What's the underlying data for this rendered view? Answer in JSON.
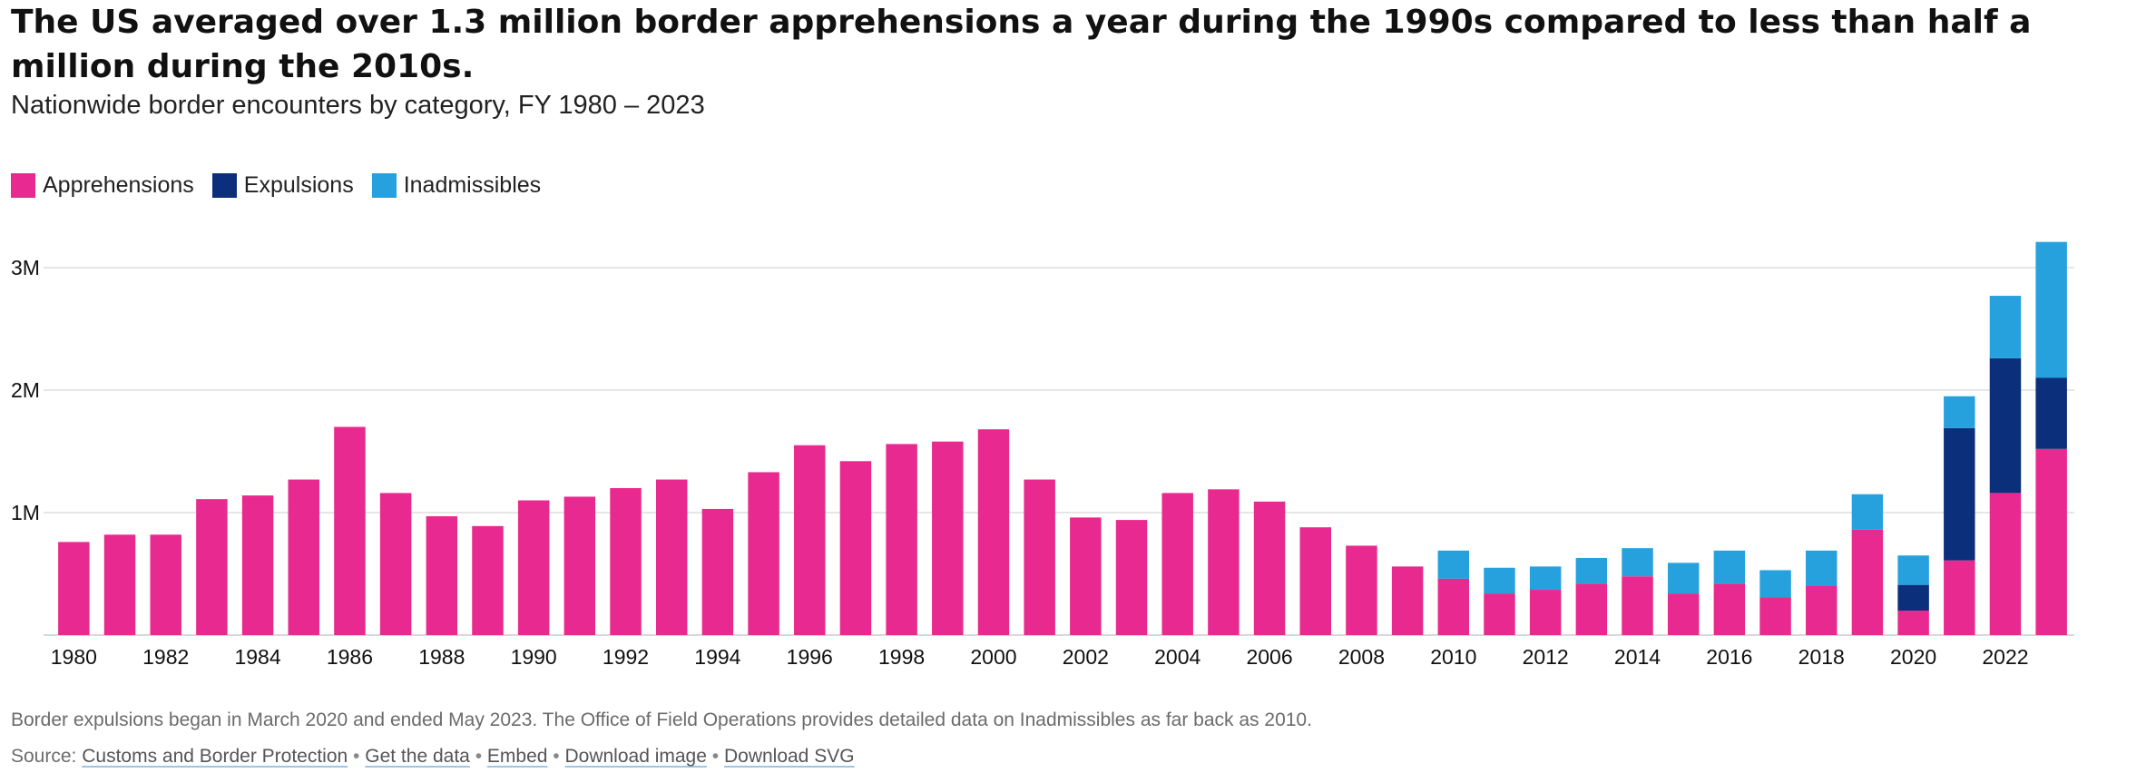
{
  "title": "The US averaged over 1.3 million border apprehensions a year during the 1990s compared to less than half a million during the 2010s.",
  "subtitle": "Nationwide border encounters by category, FY 1980 – 2023",
  "colors": {
    "apprehensions": "#e8298f",
    "expulsions": "#0b2f7a",
    "inadmissibles": "#27a1de",
    "grid": "#dddddd",
    "axis_text": "#111111"
  },
  "footnote": "Border expulsions began in March 2020 and ended May 2023. The Office of Field Operations provides detailed data on Inadmissibles as far back as 2010.",
  "source": {
    "prefix": "Source:",
    "links": [
      "Customs and Border Protection",
      "Get the data",
      "Embed",
      "Download image",
      "Download SVG"
    ],
    "separator": "•"
  },
  "chart_data": {
    "type": "bar",
    "stacked": true,
    "legend_position": "top-left",
    "grid": true,
    "ylim": [
      0,
      3200000
    ],
    "yticks": [
      1000000,
      2000000,
      3000000
    ],
    "ytick_labels": [
      "1M",
      "2M",
      "3M"
    ],
    "xtick_labels": [
      "1980",
      "1982",
      "1984",
      "1986",
      "1988",
      "1990",
      "1992",
      "1994",
      "1996",
      "1998",
      "2000",
      "2002",
      "2004",
      "2006",
      "2008",
      "2010",
      "2012",
      "2014",
      "2016",
      "2018",
      "2020",
      "2022"
    ],
    "categories": [
      "1980",
      "1981",
      "1982",
      "1983",
      "1984",
      "1985",
      "1986",
      "1987",
      "1988",
      "1989",
      "1990",
      "1991",
      "1992",
      "1993",
      "1994",
      "1995",
      "1996",
      "1997",
      "1998",
      "1999",
      "2000",
      "2001",
      "2002",
      "2003",
      "2004",
      "2005",
      "2006",
      "2007",
      "2008",
      "2009",
      "2010",
      "2011",
      "2012",
      "2013",
      "2014",
      "2015",
      "2016",
      "2017",
      "2018",
      "2019",
      "2020",
      "2021",
      "2022",
      "2023"
    ],
    "series": [
      {
        "name": "Apprehensions",
        "key": "apprehensions",
        "values": [
          760000,
          820000,
          820000,
          1110000,
          1140000,
          1270000,
          1700000,
          1160000,
          970000,
          890000,
          1100000,
          1130000,
          1200000,
          1270000,
          1030000,
          1330000,
          1550000,
          1420000,
          1560000,
          1580000,
          1680000,
          1270000,
          960000,
          940000,
          1160000,
          1190000,
          1090000,
          880000,
          730000,
          560000,
          460000,
          340000,
          370000,
          420000,
          480000,
          340000,
          420000,
          310000,
          400000,
          860000,
          200000,
          610000,
          1160000,
          1520000
        ]
      },
      {
        "name": "Expulsions",
        "key": "expulsions",
        "values": [
          0,
          0,
          0,
          0,
          0,
          0,
          0,
          0,
          0,
          0,
          0,
          0,
          0,
          0,
          0,
          0,
          0,
          0,
          0,
          0,
          0,
          0,
          0,
          0,
          0,
          0,
          0,
          0,
          0,
          0,
          0,
          0,
          0,
          0,
          0,
          0,
          0,
          0,
          0,
          0,
          210000,
          1080000,
          1100000,
          580000
        ]
      },
      {
        "name": "Inadmissibles",
        "key": "inadmissibles",
        "values": [
          0,
          0,
          0,
          0,
          0,
          0,
          0,
          0,
          0,
          0,
          0,
          0,
          0,
          0,
          0,
          0,
          0,
          0,
          0,
          0,
          0,
          0,
          0,
          0,
          0,
          0,
          0,
          0,
          0,
          0,
          230000,
          210000,
          190000,
          210000,
          230000,
          250000,
          270000,
          220000,
          290000,
          290000,
          240000,
          260000,
          510000,
          1110000
        ]
      }
    ]
  }
}
